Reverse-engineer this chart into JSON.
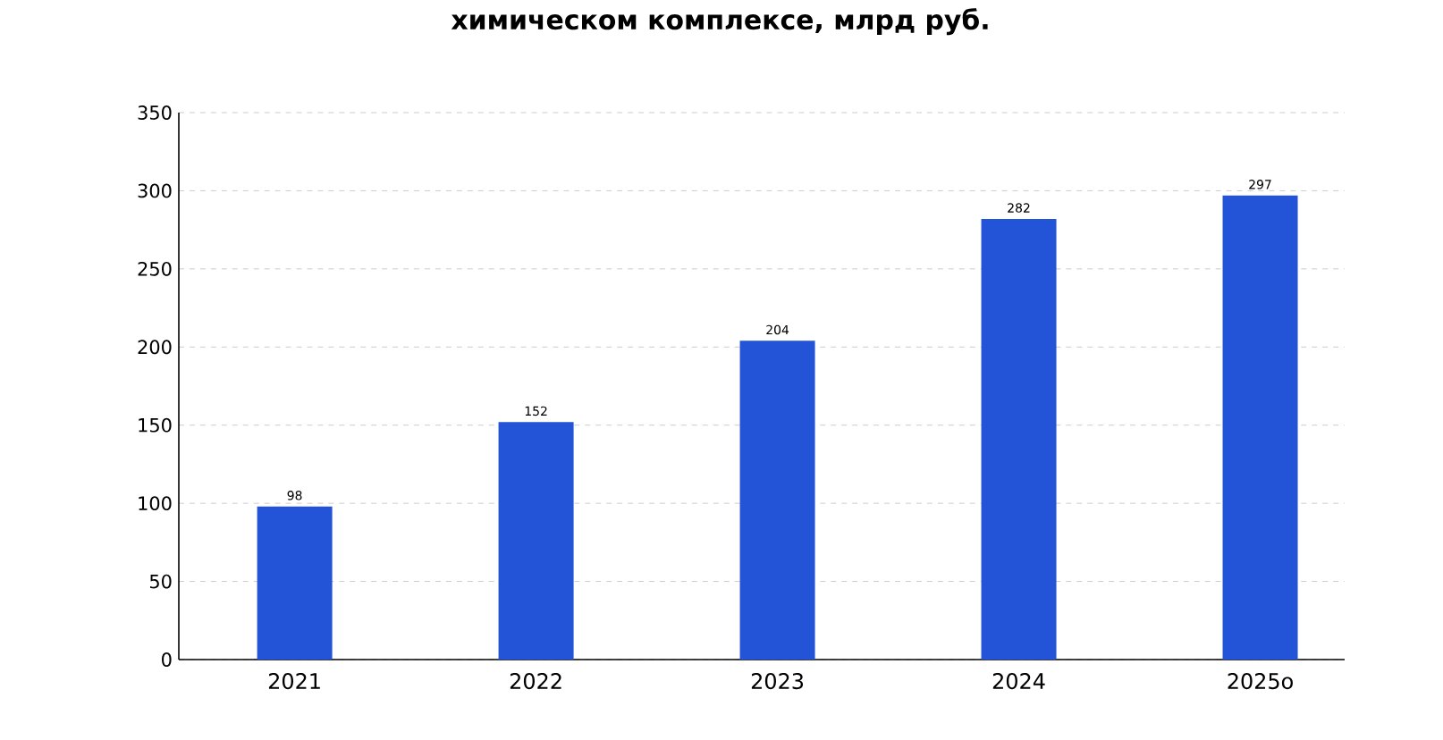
{
  "chart_data": {
    "type": "bar",
    "title": "химическом комплексе, млрд руб.",
    "categories": [
      "2021",
      "2022",
      "2023",
      "2024",
      "2025о"
    ],
    "values": [
      98,
      152,
      204,
      282,
      297
    ],
    "color": "#2353d6",
    "ylim": [
      0,
      350
    ],
    "yticks": [
      0,
      50,
      100,
      150,
      200,
      250,
      300,
      350
    ],
    "grid": "y",
    "data_labels": true
  }
}
